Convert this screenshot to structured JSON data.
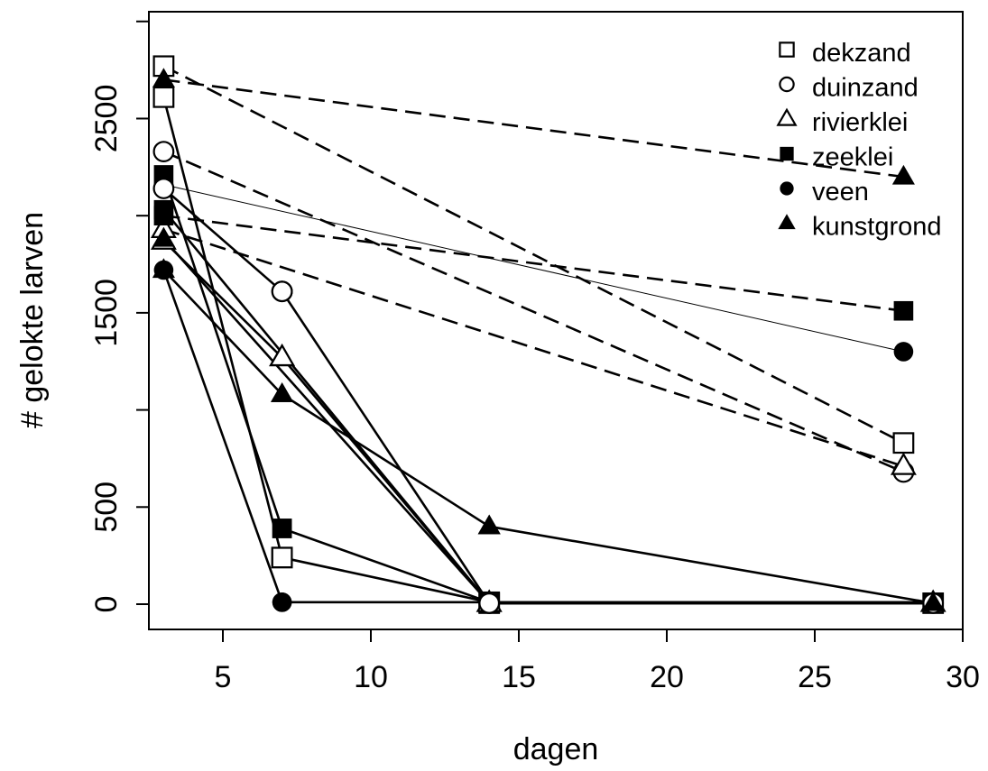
{
  "chart_data": {
    "type": "line",
    "xlabel": "dagen",
    "ylabel": "# gelokte larven",
    "xlim": [
      2.5,
      30
    ],
    "ylim": [
      -130,
      3050
    ],
    "xticks": [
      5,
      10,
      15,
      20,
      25,
      30
    ],
    "yticks": [
      0,
      500,
      1000,
      1500,
      2000,
      2500,
      3000
    ],
    "yticklabels": [
      "0",
      "500",
      "",
      "1500",
      "",
      "2500",
      ""
    ],
    "grid": false,
    "legend_position": "top-right",
    "legend": [
      {
        "label": "dekzand",
        "marker": "open-square"
      },
      {
        "label": "duinzand",
        "marker": "open-circle"
      },
      {
        "label": "rivierklei",
        "marker": "open-triangle"
      },
      {
        "label": "zeeklei",
        "marker": "filled-square"
      },
      {
        "label": "veen",
        "marker": "filled-circle"
      },
      {
        "label": "kunstgrond",
        "marker": "filled-triangle"
      }
    ],
    "series": [
      {
        "marker": "open-square",
        "style": "dashed",
        "x": [
          3,
          28
        ],
        "y": [
          2770,
          830
        ]
      },
      {
        "marker": "open-circle",
        "style": "dashed",
        "x": [
          3,
          28
        ],
        "y": [
          2330,
          680
        ]
      },
      {
        "marker": "open-triangle",
        "style": "dashed",
        "x": [
          3,
          28
        ],
        "y": [
          1930,
          710
        ]
      },
      {
        "marker": "filled-square",
        "style": "dashed",
        "x": [
          3,
          28
        ],
        "y": [
          2000,
          1510
        ]
      },
      {
        "marker": "filled-circle",
        "style": "thin",
        "x": [
          3,
          28
        ],
        "y": [
          2160,
          1300
        ]
      },
      {
        "marker": "filled-triangle",
        "style": "dashed",
        "x": [
          3,
          28
        ],
        "y": [
          2700,
          2200
        ]
      },
      {
        "marker": "open-square",
        "style": "solid",
        "x": [
          3,
          7
        ],
        "y": [
          2610,
          240
        ]
      },
      {
        "marker": "open-square",
        "style": "solid",
        "x": [
          7,
          14
        ],
        "y": [
          240,
          10
        ]
      },
      {
        "marker": "filled-square",
        "style": "solid",
        "x": [
          3,
          7
        ],
        "y": [
          2210,
          390
        ]
      },
      {
        "marker": "filled-square",
        "style": "solid",
        "x": [
          7,
          14
        ],
        "y": [
          390,
          10
        ]
      },
      {
        "marker": "open-circle",
        "style": "solid",
        "x": [
          3,
          7
        ],
        "y": [
          2140,
          1610
        ]
      },
      {
        "marker": "open-circle",
        "style": "solid",
        "x": [
          7,
          14
        ],
        "y": [
          1610,
          5
        ]
      },
      {
        "marker": "open-triangle",
        "style": "solid",
        "x": [
          3,
          7
        ],
        "y": [
          1870,
          1270
        ]
      },
      {
        "marker": "open-triangle",
        "style": "solid",
        "x": [
          7,
          14
        ],
        "y": [
          1270,
          5
        ]
      },
      {
        "marker": "filled-triangle",
        "style": "solid",
        "x": [
          3,
          7
        ],
        "y": [
          1720,
          1080
        ]
      },
      {
        "marker": "filled-triangle",
        "style": "solid",
        "x": [
          7,
          14
        ],
        "y": [
          1080,
          400
        ]
      },
      {
        "marker": "filled-triangle",
        "style": "solid",
        "x": [
          14,
          29
        ],
        "y": [
          400,
          5
        ]
      },
      {
        "marker": "filled-circle",
        "style": "solid",
        "x": [
          3,
          7
        ],
        "y": [
          1720,
          10
        ]
      },
      {
        "marker": "filled-circle",
        "style": "solid",
        "x": [
          7,
          29
        ],
        "y": [
          10,
          10
        ]
      },
      {
        "marker": "open-square",
        "style": "solid",
        "x": [
          14,
          29
        ],
        "y": [
          5,
          5
        ]
      },
      {
        "marker": "filled-square",
        "style": "solid",
        "x": [
          3,
          14
        ],
        "y": [
          2030,
          5
        ]
      },
      {
        "marker": "filled-triangle",
        "style": "solid",
        "x": [
          3,
          14
        ],
        "y": [
          1880,
          5
        ]
      },
      {
        "marker": "filled-square",
        "style": "solid",
        "x": [
          14,
          29
        ],
        "y": [
          5,
          10
        ]
      },
      {
        "marker": "open-triangle",
        "style": "solid",
        "x": [
          14,
          29
        ],
        "y": [
          5,
          5
        ]
      },
      {
        "marker": "open-circle",
        "style": "solid",
        "x": [
          14,
          29
        ],
        "y": [
          5,
          5
        ]
      },
      {
        "marker": "filled-triangle",
        "style": "solid",
        "x": [
          29
        ],
        "y": [
          5
        ]
      }
    ]
  }
}
